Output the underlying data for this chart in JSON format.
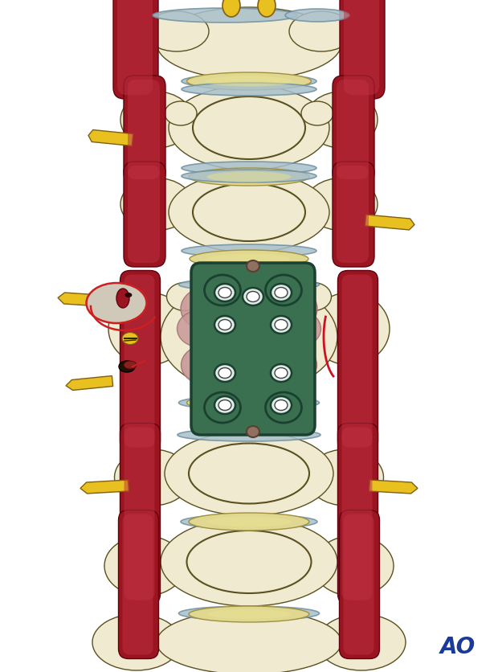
{
  "background_color": "#ffffff",
  "bone_color": "#f0ead0",
  "bone_color2": "#e8e0c0",
  "bone_outline": "#5a5020",
  "disc_color": "#e0d890",
  "disc_color2": "#d8cc80",
  "vessel_color": "#9a1520",
  "nerve_color": "#e8c020",
  "nerve_outline": "#806010",
  "ligament_color": "#a8c0cc",
  "plate_color": "#3a7050",
  "plate_outline": "#1a4030",
  "plate_hole_bg": "#c8e0d0",
  "bone_graft_color": "#c89898",
  "bone_graft_outline": "#a07070",
  "ao_color": "#1a3a9a",
  "shadow_color": "#d8d0b0",
  "figure_width": 6.2,
  "figure_height": 8.37,
  "dpi": 100
}
